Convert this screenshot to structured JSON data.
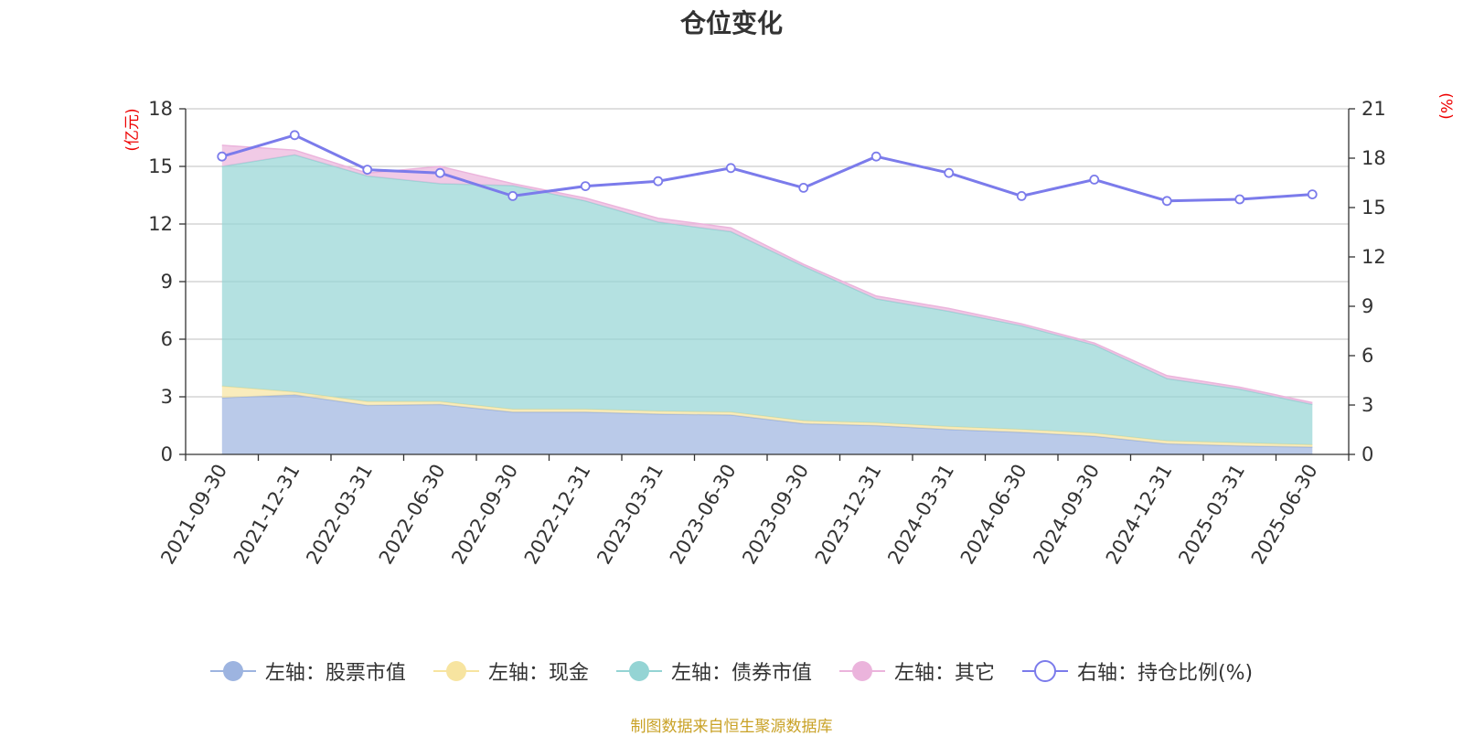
{
  "chart_data": {
    "type": "area",
    "title": "仓位变化",
    "categories": [
      "2021-09-30",
      "2021-12-31",
      "2022-03-31",
      "2022-06-30",
      "2022-09-30",
      "2022-12-31",
      "2023-03-31",
      "2023-06-30",
      "2023-09-30",
      "2023-12-31",
      "2024-03-31",
      "2024-06-30",
      "2024-09-30",
      "2024-12-31",
      "2025-03-31",
      "2025-06-30"
    ],
    "y_left": {
      "unit": "(亿元)",
      "ylim": [
        0,
        18
      ],
      "ticks": [
        "0",
        "3",
        "6",
        "9",
        "12",
        "15",
        "18"
      ]
    },
    "y_right": {
      "unit": "(%)",
      "ylim": [
        0,
        21
      ],
      "ticks": [
        "0",
        "3",
        "6",
        "9",
        "12",
        "15",
        "18",
        "21"
      ]
    },
    "stacked": true,
    "series": [
      {
        "name": "左轴：股票市值",
        "axis": "left",
        "color": "#9db4e0",
        "values": [
          2.95,
          3.1,
          2.55,
          2.6,
          2.2,
          2.2,
          2.1,
          2.05,
          1.6,
          1.5,
          1.3,
          1.15,
          0.95,
          0.55,
          0.45,
          0.38
        ]
      },
      {
        "name": "左轴：现金",
        "axis": "left",
        "color": "#f7e4a0",
        "values": [
          0.6,
          0.15,
          0.2,
          0.15,
          0.15,
          0.15,
          0.15,
          0.15,
          0.15,
          0.15,
          0.15,
          0.15,
          0.15,
          0.15,
          0.15,
          0.12
        ]
      },
      {
        "name": "左轴：债券市值",
        "axis": "left",
        "color": "#94d4d4",
        "values": [
          11.45,
          12.35,
          11.75,
          11.35,
          11.65,
          10.85,
          9.85,
          9.4,
          8.05,
          6.45,
          6.0,
          5.4,
          4.6,
          3.25,
          2.8,
          2.1
        ]
      },
      {
        "name": "左轴：其它",
        "axis": "left",
        "color": "#ebb4dc",
        "values": [
          1.1,
          0.25,
          0.15,
          0.9,
          0.1,
          0.15,
          0.2,
          0.2,
          0.1,
          0.15,
          0.15,
          0.1,
          0.1,
          0.15,
          0.1,
          0.1
        ]
      },
      {
        "name": "右轴：持仓比例(%)",
        "axis": "right",
        "type": "line",
        "color": "#7b7beb",
        "values": [
          18.1,
          19.4,
          17.3,
          17.1,
          15.7,
          16.3,
          16.6,
          17.4,
          16.2,
          18.1,
          17.1,
          15.7,
          16.7,
          15.4,
          15.5,
          15.8
        ]
      }
    ],
    "grid": true,
    "legend_position": "bottom"
  },
  "source_note": "制图数据来自恒生聚源数据库"
}
